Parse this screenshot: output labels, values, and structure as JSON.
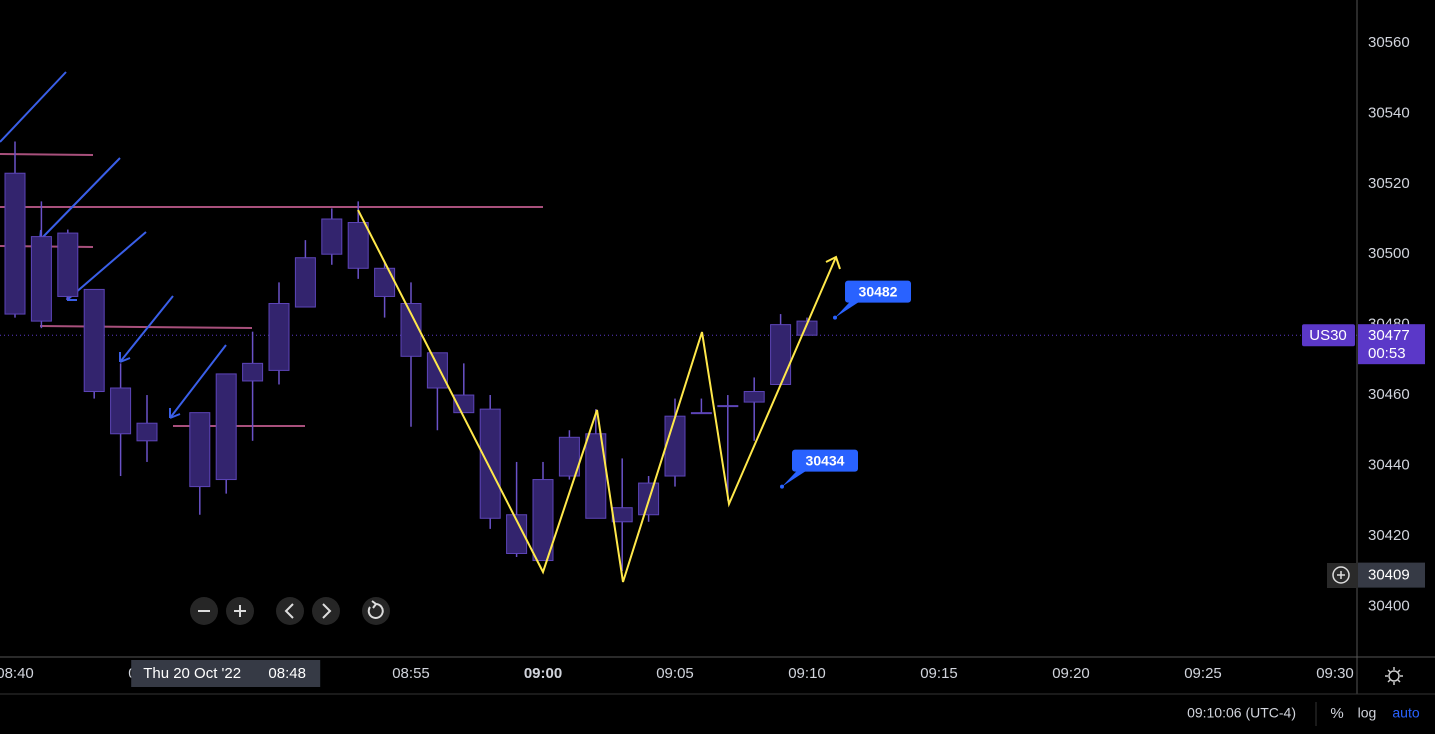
{
  "chart_data": {
    "type": "candlestick",
    "x": [
      "08:40",
      "08:41",
      "08:42",
      "08:43",
      "08:44",
      "08:45",
      "08:47",
      "08:48",
      "08:49",
      "08:50",
      "08:51",
      "08:52",
      "08:53",
      "08:54",
      "08:55",
      "08:56",
      "08:57",
      "08:58",
      "08:59",
      "09:00",
      "09:01",
      "09:02",
      "09:03",
      "09:04",
      "09:05",
      "09:06",
      "09:07",
      "09:08",
      "09:09",
      "09:10"
    ],
    "open": [
      30523,
      30481,
      30506,
      30490,
      30462,
      30447,
      30455,
      30436,
      30464,
      30467,
      30485,
      30500,
      30509,
      30496,
      30486,
      30472,
      30460,
      30456,
      30426,
      30413,
      30437,
      30449,
      30424,
      30426,
      30437,
      30455,
      30457,
      30458,
      30463,
      30481
    ],
    "high": [
      30532,
      30515,
      30507,
      30490,
      30469,
      30460,
      30455,
      30466,
      30478,
      30492,
      30504,
      30513,
      30515,
      30498,
      30492,
      30472,
      30469,
      30460,
      30441,
      30441,
      30450,
      30456,
      30442,
      30437,
      30459,
      30459,
      30460,
      30465,
      30483,
      30482
    ],
    "low": [
      30482,
      30479,
      30487,
      30459,
      30437,
      30441,
      30426,
      30432,
      30447,
      30463,
      30485,
      30497,
      30493,
      30482,
      30451,
      30450,
      30455,
      30422,
      30414,
      30413,
      30436,
      30425,
      30410,
      30424,
      30434,
      30455,
      30430,
      30447,
      30463,
      30477
    ],
    "close": [
      30483,
      30505,
      30488,
      30461,
      30449,
      30452,
      30434,
      30466,
      30469,
      30486,
      30499,
      30510,
      30496,
      30488,
      30471,
      30462,
      30455,
      30425,
      30415,
      30436,
      30448,
      30425,
      30428,
      30435,
      30454,
      30455,
      30457,
      30461,
      30480,
      30477
    ],
    "color": "#33246e",
    "ylim": [
      30385.6,
      30572.2
    ],
    "yticks": [
      30400,
      30420,
      30440,
      30460,
      30480,
      30500,
      30520,
      30540,
      30560
    ],
    "xticks": [
      "08:40",
      "08:45",
      "08:50",
      "08:55",
      "09:00",
      "09:05",
      "09:10",
      "09:15",
      "09:20",
      "09:25",
      "09:30"
    ]
  },
  "symbol": "US30",
  "last_price": 30477,
  "countdown": "00:53",
  "crosshair": {
    "price": 30409,
    "date": "Thu 20 Oct '22",
    "time": "08:48"
  },
  "annotations": [
    30482,
    30434
  ],
  "status_bar": {
    "clock": "09:10:06 (UTC-4)",
    "percent": "%",
    "log": "log",
    "auto": "auto"
  }
}
